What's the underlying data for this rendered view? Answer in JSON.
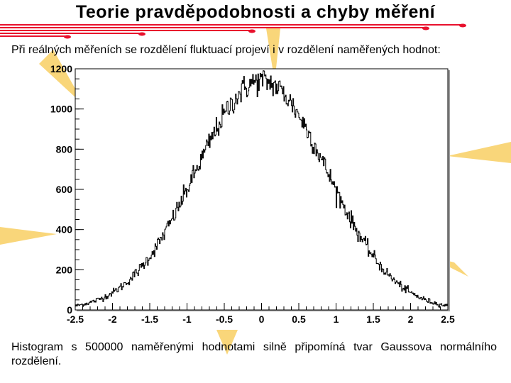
{
  "slide": {
    "title": "Teorie pravděpodobnosti a chyby měření",
    "intro": "Při reálných měřeních se rozdělení fluktuací projeví i v rozdělení naměřených hodnot:",
    "caption": "Histogram s 500000 naměřenými hodnotami silně připomíná tvar Gaussova normálního rozdělení."
  },
  "theme": {
    "accent_red": "#e8112d",
    "star_yellow": "#f8cf63",
    "histogram_color": "#000000"
  },
  "chart_data": {
    "type": "bar",
    "title": "",
    "xlabel": "",
    "ylabel": "",
    "xlim": [
      -2.5,
      2.5
    ],
    "ylim": [
      0,
      1200
    ],
    "x_ticks": [
      "-2.5",
      "-2",
      "-1.5",
      "-1",
      "-0.5",
      "0",
      "0.5",
      "1",
      "1.5",
      "2",
      "2.5"
    ],
    "y_ticks": [
      "0",
      "200",
      "400",
      "600",
      "800",
      "1000",
      "1200"
    ],
    "grid": false,
    "legend": "none",
    "bins": 500,
    "entries": 500000,
    "peak_count": 1140,
    "mean": 0,
    "sigma": 0.88
  }
}
